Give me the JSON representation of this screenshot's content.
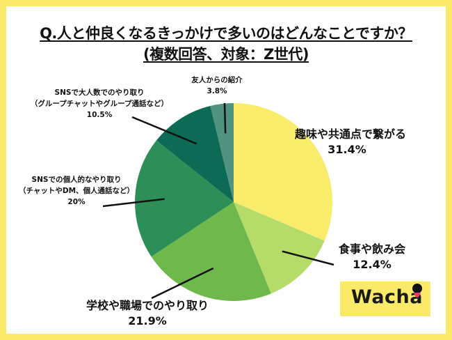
{
  "title_line1": "Q.人と仲良くなるきっかけで多いのはどんなことですか？",
  "title_line2": "(複数回答、対象：Z世代)",
  "logo_text": "Wacha",
  "chart_data": {
    "type": "pie",
    "start": "12 o'clock",
    "direction": "clockwise",
    "slices": [
      {
        "label": "趣味や共通点で繋がる",
        "value": 31.4,
        "value_label": "31.4%",
        "color": "#f8ec6a"
      },
      {
        "label": "食事や飲み会",
        "value": 12.4,
        "value_label": "12.4%",
        "color": "#b5dc68"
      },
      {
        "label": "学校や職場でのやり取り",
        "value": 21.9,
        "value_label": "21.9%",
        "color": "#6fb84c"
      },
      {
        "label": "SNSでの個人的なやり取り（チャットやDM、個人通話など）",
        "label_lines": [
          "SNSでの個人的なやり取り",
          "（チャットやDM、個人通話など）"
        ],
        "value": 20,
        "value_label": "20%",
        "color": "#2e8e57"
      },
      {
        "label": "SNSで大人数でのやり取り（グループチャットやグループ通話など）",
        "label_lines": [
          "SNSで大人数でのやり取り",
          "（グループチャットやグループ通話など）"
        ],
        "value": 10.5,
        "value_label": "10.5%",
        "color": "#0d6a55"
      },
      {
        "label": "友人からの紹介",
        "value": 3.8,
        "value_label": "3.8%",
        "color": "#4f9380"
      }
    ]
  },
  "colors": {
    "frame": "#fbe96a",
    "logo_dot": "#111111",
    "logo_tongue": "#e83a6a"
  }
}
